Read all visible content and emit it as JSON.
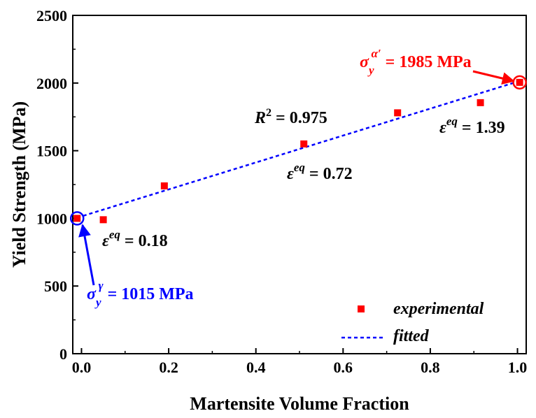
{
  "chart_data": {
    "type": "scatter",
    "xlabel": "Martensite Volume Fraction",
    "ylabel": "Yield Strength (MPa)",
    "xlim": [
      -0.02,
      1.02
    ],
    "ylim": [
      0,
      2500
    ],
    "xticks": [
      "0.0",
      "0.2",
      "0.4",
      "0.6",
      "0.8",
      "1.0"
    ],
    "xtick_values": [
      0,
      0.2,
      0.4,
      0.6,
      0.8,
      1.0
    ],
    "yticks": [
      "0",
      "500",
      "1000",
      "1500",
      "2000",
      "2500"
    ],
    "ytick_values": [
      0,
      500,
      1000,
      1500,
      2000,
      2500
    ],
    "grid": false,
    "legend_position": "bottom-right",
    "series": [
      {
        "name": "experimental",
        "kind": "scatter",
        "color": "#ff0000",
        "marker": "square",
        "points": [
          {
            "x": -0.01,
            "y": 1000
          },
          {
            "x": 0.05,
            "y": 990
          },
          {
            "x": 0.19,
            "y": 1240
          },
          {
            "x": 0.51,
            "y": 1550
          },
          {
            "x": 0.725,
            "y": 1780
          },
          {
            "x": 0.915,
            "y": 1855
          },
          {
            "x": 1.005,
            "y": 2005
          }
        ]
      },
      {
        "name": "fitted",
        "kind": "line",
        "style": "dashed",
        "color": "#0000ff",
        "points": [
          {
            "x": -0.01,
            "y": 1005
          },
          {
            "x": 1.005,
            "y": 2015
          }
        ]
      }
    ],
    "highlighted_points": [
      {
        "x": -0.01,
        "y": 1000,
        "color": "#0000ff"
      },
      {
        "x": 1.005,
        "y": 2005,
        "color": "#ff0000"
      }
    ],
    "annotations": {
      "r2": {
        "symbol": "R",
        "sup": "2",
        "text": " = 0.975",
        "color": "#000000"
      },
      "eq1": {
        "symbol": "ε",
        "sup": "eq",
        "text": " = 0.18",
        "color": "#000000"
      },
      "eq2": {
        "symbol": "ε",
        "sup": "eq",
        "text": " = 0.72",
        "color": "#000000"
      },
      "eq3": {
        "symbol": "ε",
        "sup": "eq",
        "text": " = 1.39",
        "color": "#000000"
      },
      "sigma_gamma": {
        "symbol": "σ",
        "sub": "y",
        "sup": "γ",
        "text": " = 1015 MPa",
        "color": "#0000ff"
      },
      "sigma_alpha": {
        "symbol": "σ",
        "sub": "y",
        "sup": "α′",
        "text": " = 1985 MPa",
        "color": "#ff0000"
      }
    }
  }
}
